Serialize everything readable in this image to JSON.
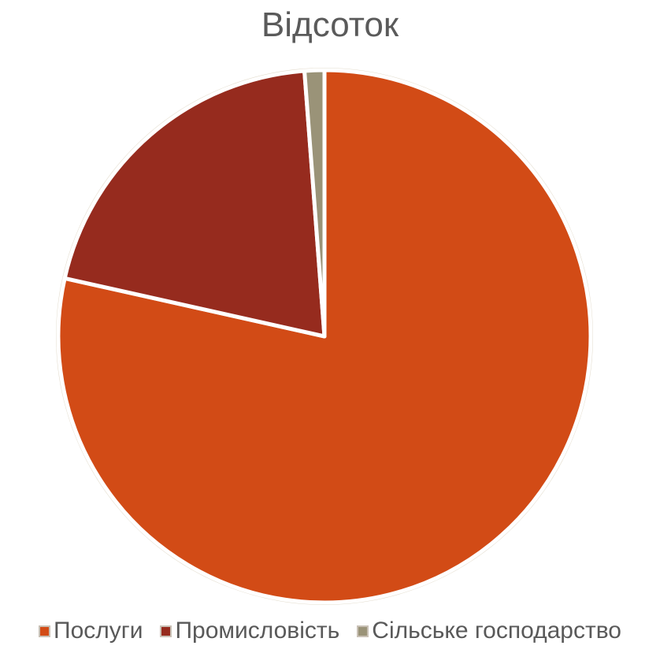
{
  "chart_data": {
    "type": "pie",
    "title": "Відсоток",
    "categories": [
      "Послуги",
      "Промисловість",
      "Сільське господарство"
    ],
    "values": [
      78.5,
      20.3,
      1.2
    ],
    "colors": [
      "#d24b16",
      "#962b1e",
      "#9a9378"
    ],
    "legend_position": "bottom"
  }
}
